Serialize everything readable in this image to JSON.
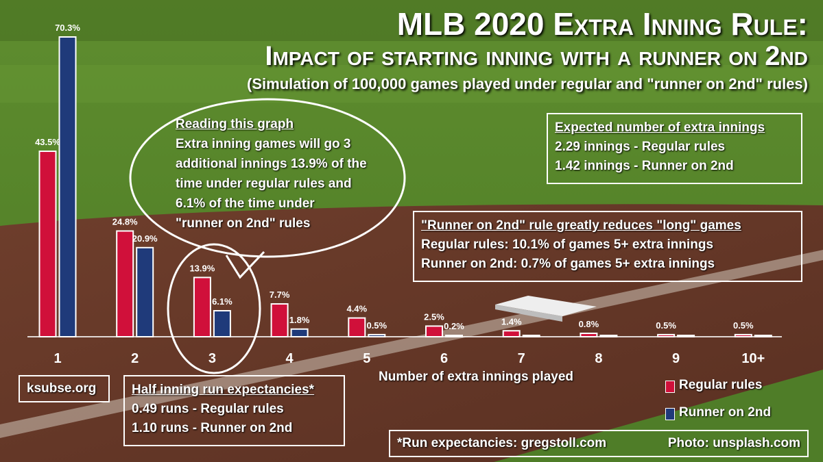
{
  "title": "MLB 2020 Extra Inning Rule:",
  "subtitle": "Impact of starting inning with a runner on 2nd",
  "subsubtitle": "(Simulation of 100,000 games played under regular and \"runner on 2nd\" rules)",
  "reading": {
    "heading": "Reading this graph",
    "lines": [
      "Extra inning games will go 3",
      "additional innings 13.9% of the",
      "time under regular rules and",
      "6.1% of the time under",
      "\"runner on 2nd\" rules"
    ]
  },
  "expected": {
    "heading": "Expected number of extra innings",
    "line1": "2.29 innings - Regular rules",
    "line2": "1.42 innings - Runner on 2nd"
  },
  "long_games": {
    "heading": "\"Runner on 2nd\" rule greatly reduces \"long\" games",
    "line1": "Regular rules: 10.1% of games 5+ extra innings",
    "line2": "Runner on 2nd: 0.7% of games 5+ extra innings"
  },
  "half_inning": {
    "heading": "Half inning run expectancies*",
    "line1": "0.49 runs - Regular rules",
    "line2": "1.10 runs - Runner on 2nd"
  },
  "site": "ksubse.org",
  "credits": {
    "runexp": "*Run expectancies: gregstoll.com",
    "photo": "Photo: unsplash.com"
  },
  "colors": {
    "regular": "#d0103a",
    "runner": "#1f3a7a"
  },
  "chart_data": {
    "type": "bar",
    "categories": [
      "1",
      "2",
      "3",
      "4",
      "5",
      "6",
      "7",
      "8",
      "9",
      "10+"
    ],
    "series": [
      {
        "name": "Regular rules",
        "values": [
          43.5,
          24.8,
          13.9,
          7.7,
          4.4,
          2.5,
          1.4,
          0.8,
          0.5,
          0.5
        ],
        "labels": [
          "43.5%",
          "24.8%",
          "13.9%",
          "7.7%",
          "4.4%",
          "2.5%",
          "1.4%",
          "0.8%",
          "0.5%",
          "0.5%"
        ]
      },
      {
        "name": "Runner on 2nd",
        "values": [
          70.3,
          20.9,
          6.1,
          1.8,
          0.5,
          0.2,
          0,
          0,
          0,
          0
        ],
        "labels": [
          "70.3%",
          "20.9%",
          "6.1%",
          "1.8%",
          "0.5%",
          "0.2%",
          "",
          "",
          "",
          ""
        ]
      }
    ],
    "xlabel": "Number of extra innings played",
    "ylim": [
      0,
      70.3
    ]
  }
}
